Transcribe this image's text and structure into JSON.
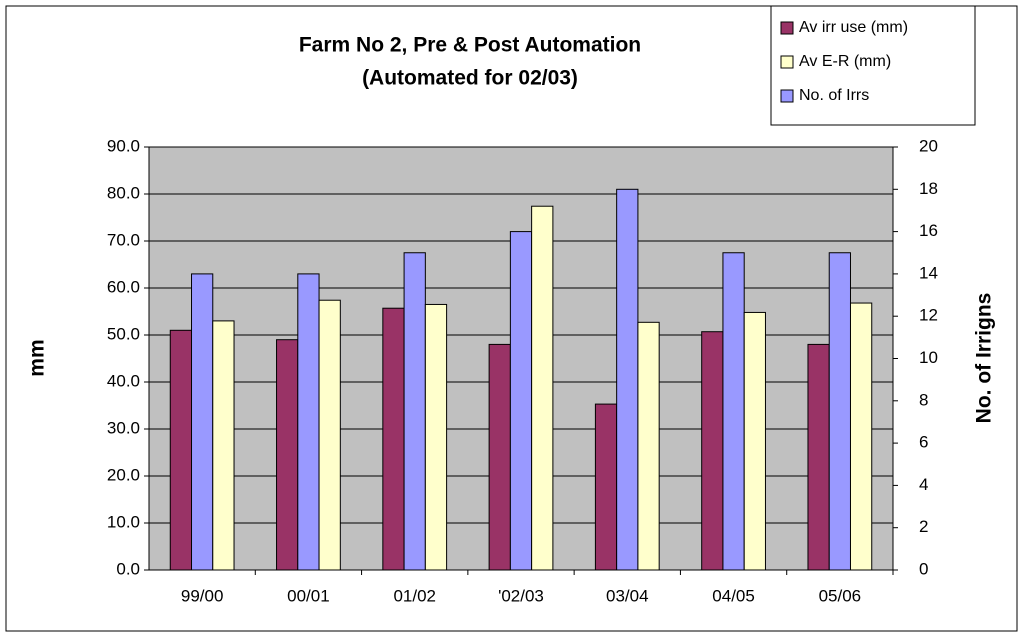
{
  "chart_data": {
    "type": "bar",
    "title": "Farm No 2, Pre & Post Automation",
    "subtitle": "(Automated for 02/03)",
    "y_label": "mm",
    "y2_label": "No. of Irrigns",
    "categories": [
      "99/00",
      "00/01",
      "01/02",
      "'02/03",
      "03/04",
      "04/05",
      "05/06"
    ],
    "series": [
      {
        "name": "Av irr use (mm)",
        "color": "#993366",
        "values": [
          51,
          49,
          55.7,
          48,
          35.3,
          50.7,
          48
        ]
      },
      {
        "name": "Av E-R (mm)",
        "color": "#ffffcc",
        "values": [
          53,
          57.4,
          56.5,
          77.4,
          52.7,
          54.8,
          56.8
        ]
      },
      {
        "name": "No. of Irrs",
        "color": "#9999ff",
        "axis": "y2",
        "values": [
          14,
          14,
          15,
          16,
          18,
          15,
          15
        ]
      }
    ],
    "ylim": [
      0,
      90
    ],
    "yticks": [
      {
        "value": 0,
        "label": "0.0"
      },
      {
        "value": 10,
        "label": "10.0"
      },
      {
        "value": 20,
        "label": "20.0"
      },
      {
        "value": 30,
        "label": "30.0"
      },
      {
        "value": 40,
        "label": "40.0"
      },
      {
        "value": 50,
        "label": "50.0"
      },
      {
        "value": 60,
        "label": "60.0"
      },
      {
        "value": 70,
        "label": "70.0"
      },
      {
        "value": 80,
        "label": "80.0"
      },
      {
        "value": 90,
        "label": "90.0"
      }
    ],
    "y2lim": [
      0,
      20
    ],
    "y2ticks": [
      0,
      2,
      4,
      6,
      8,
      10,
      12,
      14,
      16,
      18,
      20
    ],
    "grid": true,
    "legend": "top-right"
  }
}
